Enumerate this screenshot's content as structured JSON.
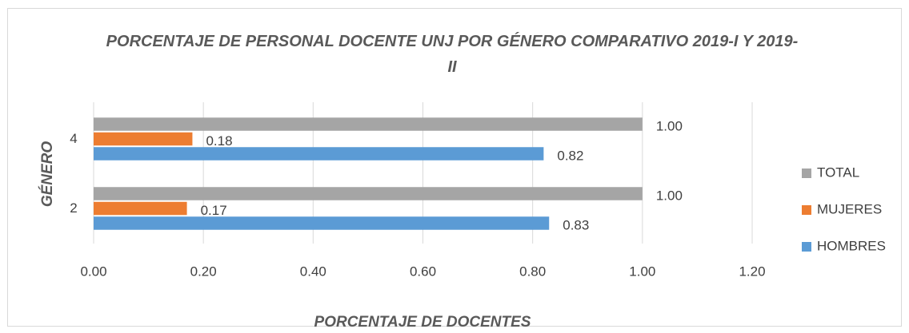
{
  "chart_data": {
    "type": "barh",
    "title": "PORCENTAJE DE PERSONAL DOCENTE UNJ POR GÉNERO COMPARATIVO 2019-I Y 2019-II",
    "xlabel": "PORCENTAJE DE DOCENTES",
    "ylabel": "GÉNERO",
    "categories": [
      "2",
      "4"
    ],
    "series": [
      {
        "name": "HOMBRES",
        "color": "#5b9bd5",
        "values": [
          0.83,
          0.82
        ],
        "value_labels": [
          "0.83",
          "0.82"
        ]
      },
      {
        "name": "MUJERES",
        "color": "#ed7d31",
        "values": [
          0.17,
          0.18
        ],
        "value_labels": [
          "0.17",
          "0.18"
        ]
      },
      {
        "name": "TOTAL",
        "color": "#a5a5a5",
        "values": [
          1,
          1
        ],
        "value_labels": [
          "1.00",
          "1.00"
        ]
      }
    ],
    "xlim": [
      0,
      1.2
    ],
    "xticks": [
      {
        "value": 0,
        "label": "0.00"
      },
      {
        "value": 0.2,
        "label": "0.20"
      },
      {
        "value": 0.4,
        "label": "0.40"
      },
      {
        "value": 0.6,
        "label": "0.60"
      },
      {
        "value": 0.8,
        "label": "0.80"
      },
      {
        "value": 1,
        "label": "1.00"
      },
      {
        "value": 1.2,
        "label": "1.20"
      }
    ],
    "grid": true,
    "legend": "right"
  }
}
